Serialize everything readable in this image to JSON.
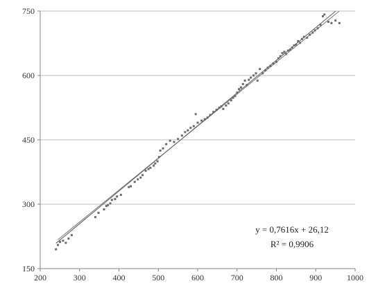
{
  "chart_data": {
    "type": "scatter",
    "title": "",
    "xlabel": "",
    "ylabel": "",
    "xlim": [
      200,
      1000
    ],
    "ylim": [
      150,
      750
    ],
    "x_ticks": [
      200,
      300,
      400,
      500,
      600,
      700,
      800,
      900,
      1000
    ],
    "y_ticks": [
      150,
      300,
      450,
      600,
      750
    ],
    "x_tick_labels": [
      "200",
      "300",
      "400",
      "500",
      "600",
      "700",
      "800",
      "900",
      "1000"
    ],
    "y_tick_labels": [
      "150",
      "300",
      "450",
      "600",
      "750"
    ],
    "grid": "horizontal",
    "trendline": {
      "slope": 0.7616,
      "intercept": 26.12,
      "r2": 0.9906
    },
    "annotations": {
      "equation": "y = 0,7616x + 26,12",
      "r_squared": "R² = 0,9906"
    },
    "colors": {
      "points": "#6b6b6b",
      "grid": "#bdbdbd",
      "line": "#666666"
    },
    "points": [
      [
        240,
        195
      ],
      [
        245,
        205
      ],
      [
        250,
        212
      ],
      [
        258,
        215
      ],
      [
        265,
        210
      ],
      [
        272,
        220
      ],
      [
        280,
        228
      ],
      [
        340,
        270
      ],
      [
        348,
        280
      ],
      [
        362,
        288
      ],
      [
        368,
        296
      ],
      [
        372,
        298
      ],
      [
        378,
        302
      ],
      [
        382,
        310
      ],
      [
        390,
        312
      ],
      [
        395,
        318
      ],
      [
        405,
        322
      ],
      [
        425,
        340
      ],
      [
        430,
        342
      ],
      [
        440,
        352
      ],
      [
        448,
        358
      ],
      [
        455,
        362
      ],
      [
        460,
        368
      ],
      [
        468,
        378
      ],
      [
        475,
        382
      ],
      [
        480,
        385
      ],
      [
        488,
        390
      ],
      [
        492,
        395
      ],
      [
        498,
        400
      ],
      [
        502,
        410
      ],
      [
        505,
        425
      ],
      [
        512,
        430
      ],
      [
        520,
        440
      ],
      [
        530,
        448
      ],
      [
        540,
        445
      ],
      [
        550,
        452
      ],
      [
        560,
        460
      ],
      [
        568,
        468
      ],
      [
        575,
        472
      ],
      [
        582,
        478
      ],
      [
        590,
        482
      ],
      [
        595,
        510
      ],
      [
        600,
        490
      ],
      [
        610,
        495
      ],
      [
        618,
        498
      ],
      [
        625,
        502
      ],
      [
        632,
        508
      ],
      [
        640,
        515
      ],
      [
        648,
        520
      ],
      [
        655,
        525
      ],
      [
        660,
        528
      ],
      [
        665,
        522
      ],
      [
        672,
        530
      ],
      [
        678,
        535
      ],
      [
        685,
        542
      ],
      [
        690,
        548
      ],
      [
        695,
        552
      ],
      [
        700,
        560
      ],
      [
        705,
        568
      ],
      [
        710,
        572
      ],
      [
        715,
        580
      ],
      [
        720,
        588
      ],
      [
        725,
        578
      ],
      [
        730,
        590
      ],
      [
        735,
        595
      ],
      [
        742,
        600
      ],
      [
        748,
        605
      ],
      [
        752,
        588
      ],
      [
        758,
        615
      ],
      [
        765,
        605
      ],
      [
        772,
        612
      ],
      [
        778,
        618
      ],
      [
        785,
        622
      ],
      [
        792,
        628
      ],
      [
        800,
        632
      ],
      [
        805,
        640
      ],
      [
        810,
        645
      ],
      [
        815,
        652
      ],
      [
        820,
        655
      ],
      [
        825,
        650
      ],
      [
        830,
        658
      ],
      [
        835,
        660
      ],
      [
        840,
        665
      ],
      [
        845,
        670
      ],
      [
        850,
        672
      ],
      [
        855,
        680
      ],
      [
        860,
        676
      ],
      [
        865,
        685
      ],
      [
        870,
        690
      ],
      [
        878,
        688
      ],
      [
        885,
        695
      ],
      [
        892,
        700
      ],
      [
        898,
        705
      ],
      [
        905,
        710
      ],
      [
        912,
        718
      ],
      [
        918,
        738
      ],
      [
        922,
        742
      ],
      [
        932,
        725
      ],
      [
        940,
        722
      ],
      [
        950,
        728
      ],
      [
        960,
        722
      ]
    ]
  }
}
